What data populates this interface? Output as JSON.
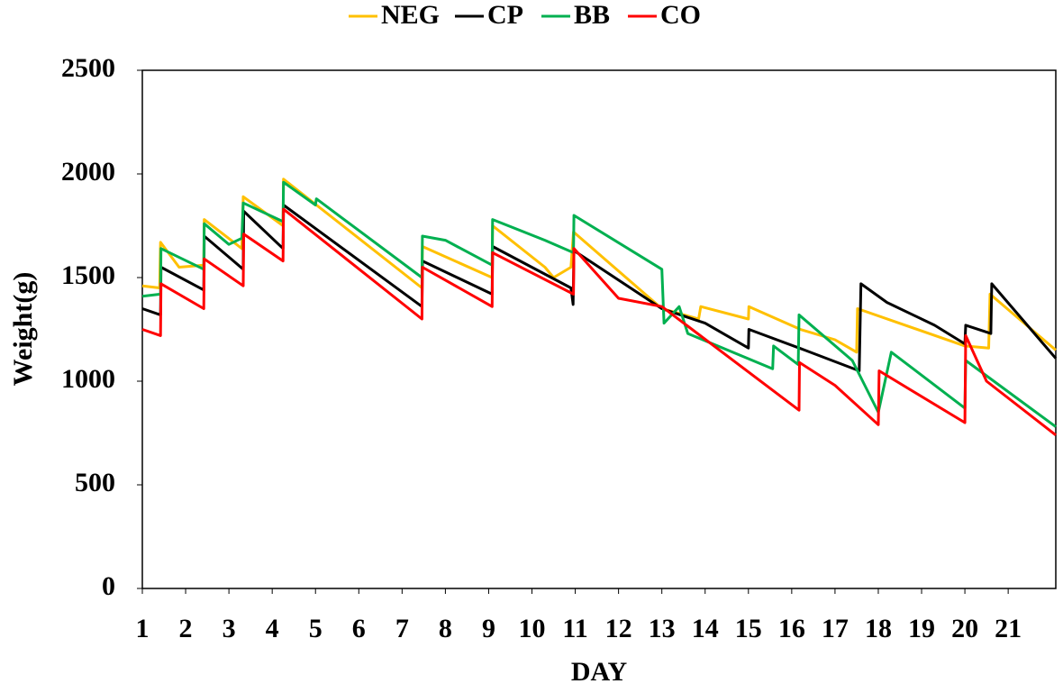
{
  "chart_data": {
    "type": "line",
    "x_label": "DAY",
    "y_label": "Weight(g)",
    "xlim": [
      1,
      22.1
    ],
    "xticks": [
      1,
      2,
      3,
      4,
      5,
      6,
      7,
      8,
      9,
      10,
      11,
      12,
      13,
      14,
      15,
      16,
      17,
      18,
      19,
      20,
      21
    ],
    "ylim": [
      0,
      2500
    ],
    "yticks": [
      0,
      500,
      1000,
      1500,
      2000,
      2500
    ],
    "legend": "top",
    "series": [
      {
        "name": "NEG",
        "color": "#ffc000",
        "x": [
          1,
          1.4,
          1.42,
          1.85,
          2.42,
          2.43,
          3.3,
          3.33,
          4.25,
          4.26,
          7.46,
          7.47,
          9.08,
          9.09,
          10.3,
          10.5,
          10.9,
          10.96,
          13.0,
          13.85,
          13.9,
          15.0,
          15.01,
          16.2,
          17.0,
          17.5,
          17.52,
          20.0,
          20.55,
          20.58,
          22.1
        ],
        "values": [
          1460,
          1450,
          1670,
          1550,
          1560,
          1780,
          1640,
          1890,
          1750,
          1975,
          1450,
          1650,
          1500,
          1750,
          1550,
          1500,
          1550,
          1720,
          1350,
          1300,
          1360,
          1300,
          1360,
          1250,
          1200,
          1140,
          1350,
          1170,
          1160,
          1420,
          1150
        ]
      },
      {
        "name": "CP",
        "color": "#000000",
        "x": [
          1,
          1.42,
          1.43,
          2.42,
          2.43,
          3.33,
          3.34,
          4.25,
          4.26,
          7.46,
          7.47,
          9.08,
          9.09,
          10.9,
          10.95,
          10.97,
          13.0,
          14.0,
          14.5,
          15.0,
          15.01,
          16.3,
          17.56,
          17.6,
          18.2,
          19.3,
          20.0,
          20.02,
          20.6,
          20.62,
          22.1
        ],
        "values": [
          1350,
          1320,
          1550,
          1440,
          1700,
          1540,
          1820,
          1640,
          1850,
          1360,
          1580,
          1420,
          1650,
          1450,
          1370,
          1630,
          1350,
          1280,
          1220,
          1160,
          1250,
          1150,
          1050,
          1470,
          1380,
          1270,
          1180,
          1270,
          1230,
          1470,
          1110
        ]
      },
      {
        "name": "BB",
        "color": "#00b050",
        "x": [
          1,
          1.42,
          1.43,
          2.42,
          2.43,
          3.0,
          3.3,
          3.33,
          4.25,
          4.26,
          5.0,
          5.02,
          7.46,
          7.47,
          8.0,
          9.08,
          9.09,
          10.3,
          10.96,
          10.97,
          13.0,
          13.05,
          13.4,
          13.6,
          15.56,
          15.58,
          16.15,
          16.17,
          17.4,
          18.0,
          18.3,
          20.0,
          20.02,
          22.1
        ],
        "values": [
          1410,
          1420,
          1640,
          1540,
          1760,
          1660,
          1690,
          1860,
          1770,
          1960,
          1850,
          1880,
          1500,
          1700,
          1680,
          1560,
          1780,
          1680,
          1620,
          1800,
          1540,
          1280,
          1360,
          1230,
          1060,
          1170,
          1080,
          1320,
          1100,
          850,
          1140,
          870,
          1100,
          780
        ]
      },
      {
        "name": "CO",
        "color": "#ff0000",
        "x": [
          1,
          1.42,
          1.43,
          2.42,
          2.43,
          3.33,
          3.34,
          4.25,
          4.26,
          7.46,
          7.47,
          9.08,
          9.09,
          10.96,
          10.97,
          12.0,
          13.0,
          16.17,
          16.18,
          17.0,
          18.0,
          18.02,
          20.0,
          20.02,
          20.5,
          22.1
        ],
        "values": [
          1250,
          1220,
          1470,
          1350,
          1590,
          1460,
          1710,
          1580,
          1830,
          1300,
          1550,
          1360,
          1620,
          1420,
          1640,
          1400,
          1360,
          860,
          1090,
          980,
          790,
          1050,
          800,
          1220,
          1000,
          740
        ]
      }
    ]
  }
}
